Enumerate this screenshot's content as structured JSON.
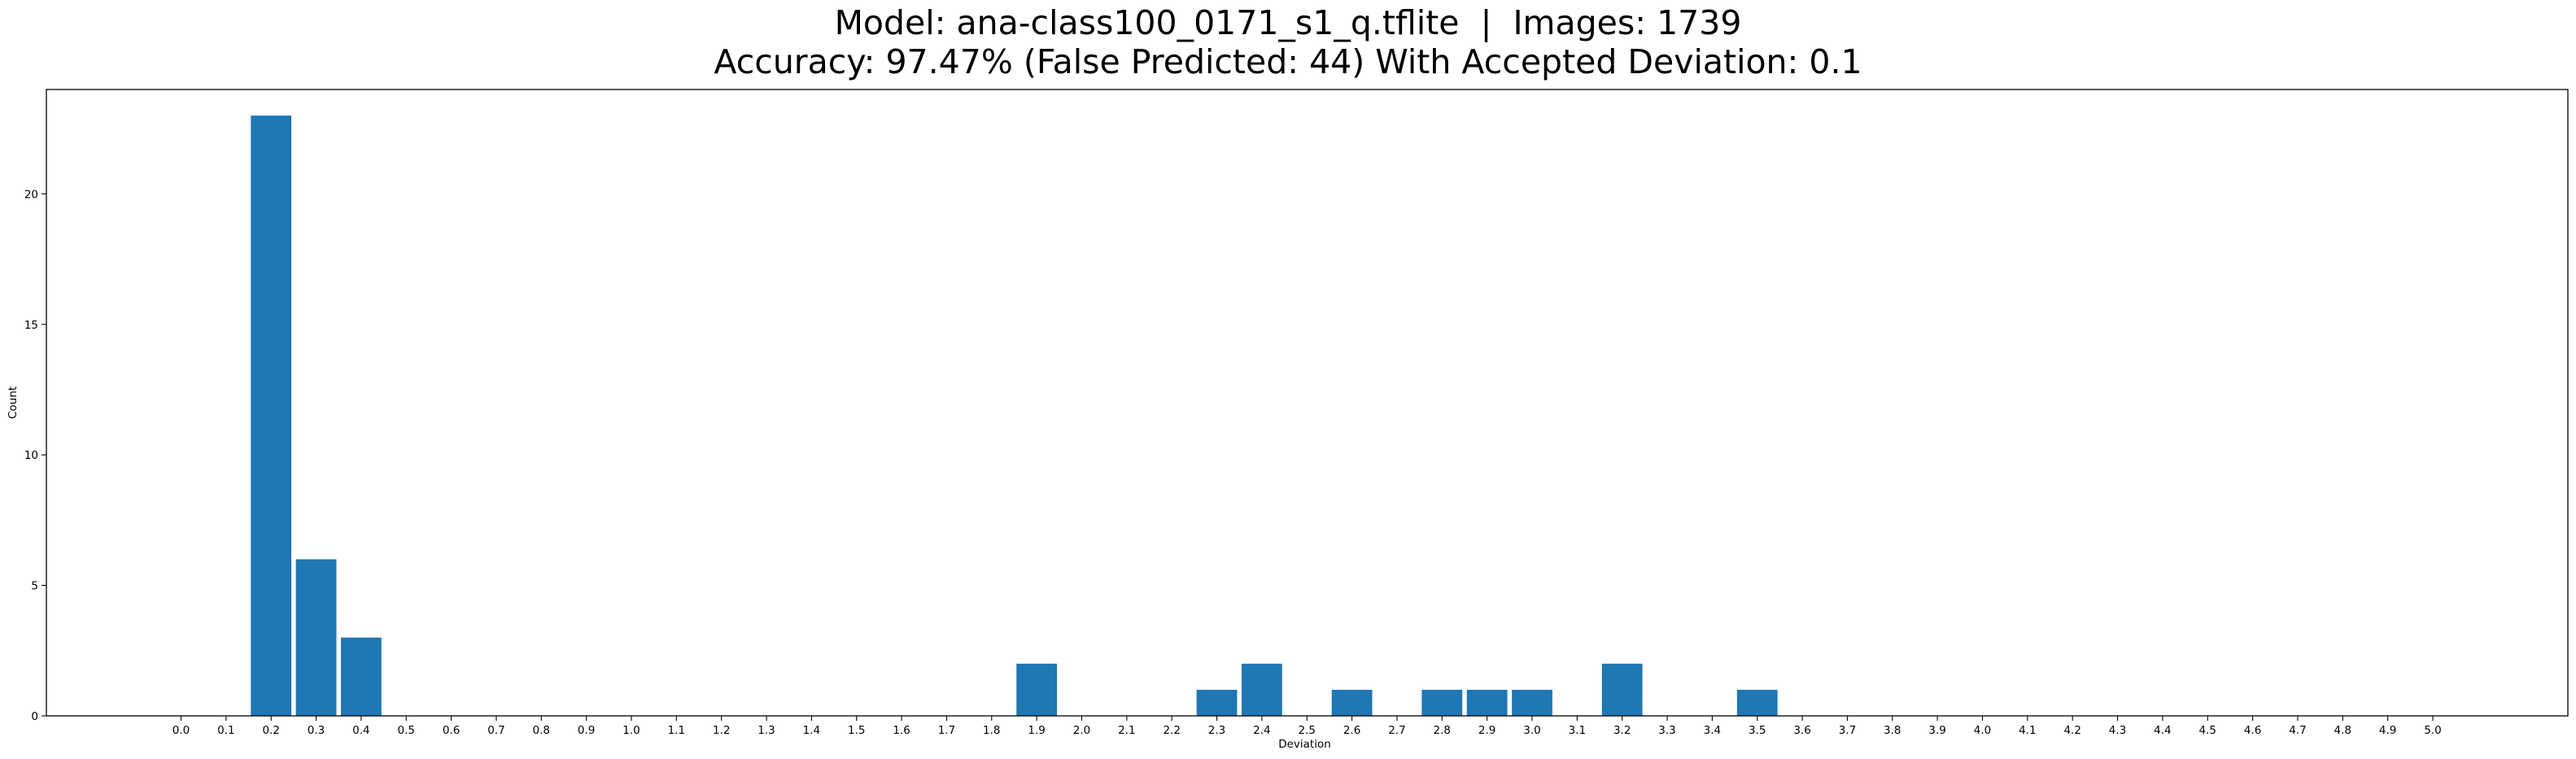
{
  "chart_data": {
    "type": "bar",
    "title": "Model: ana-class100_0171_s1_q.tflite  |  Images: 1739",
    "subtitle": "Accuracy: 97.47% (False Predicted: 44) With Accepted Deviation: 0.1",
    "xlabel": "Deviation",
    "ylabel": "Count",
    "ylim": [
      0,
      24
    ],
    "yticks": [
      0,
      5,
      10,
      15,
      20
    ],
    "grid": false,
    "bar_color": "#1f77b4",
    "categories": [
      "0.0",
      "0.1",
      "0.2",
      "0.3",
      "0.4",
      "0.5",
      "0.6",
      "0.7",
      "0.8",
      "0.9",
      "1.0",
      "1.1",
      "1.2",
      "1.3",
      "1.4",
      "1.5",
      "1.6",
      "1.7",
      "1.8",
      "1.9",
      "2.0",
      "2.1",
      "2.2",
      "2.3",
      "2.4",
      "2.5",
      "2.6",
      "2.7",
      "2.8",
      "2.9",
      "3.0",
      "3.1",
      "3.2",
      "3.3",
      "3.4",
      "3.5",
      "3.6",
      "3.7",
      "3.8",
      "3.9",
      "4.0",
      "4.1",
      "4.2",
      "4.3",
      "4.4",
      "4.5",
      "4.6",
      "4.7",
      "4.8",
      "4.9",
      "5.0"
    ],
    "values": [
      0,
      0,
      23,
      6,
      3,
      0,
      0,
      0,
      0,
      0,
      0,
      0,
      0,
      0,
      0,
      0,
      0,
      0,
      0,
      2,
      0,
      0,
      0,
      1,
      2,
      0,
      1,
      0,
      1,
      1,
      1,
      0,
      2,
      0,
      0,
      1,
      0,
      0,
      0,
      0,
      0,
      0,
      0,
      0,
      0,
      0,
      0,
      0,
      0,
      0,
      0
    ]
  }
}
